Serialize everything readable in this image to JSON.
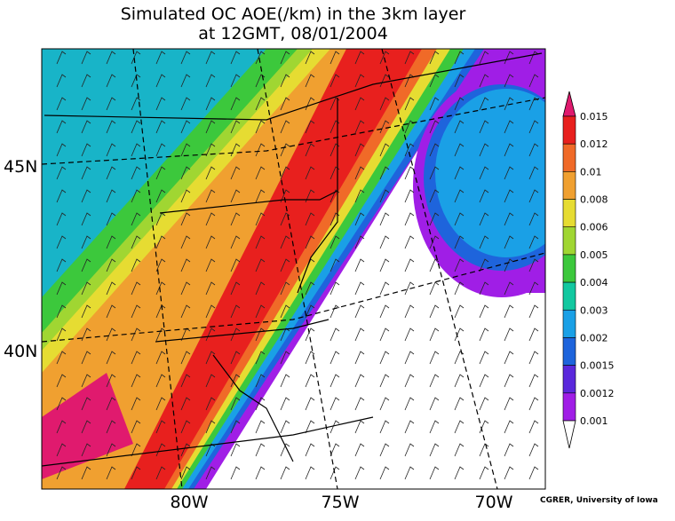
{
  "title": {
    "line1": "Simulated OC AOE(/km) in the 3km layer",
    "line2": "at 12GMT, 08/01/2004"
  },
  "latitude_labels": [
    "45N",
    "40N"
  ],
  "longitude_labels": [
    "80W",
    "75W",
    "70W"
  ],
  "colorbar": {
    "labels": [
      "0.015",
      "0.012",
      "0.01",
      "0.008",
      "0.006",
      "0.005",
      "0.004",
      "0.003",
      "0.002",
      "0.0015",
      "0.0012",
      "0.001"
    ]
  },
  "credit": "CGRER, University of Iowa"
}
